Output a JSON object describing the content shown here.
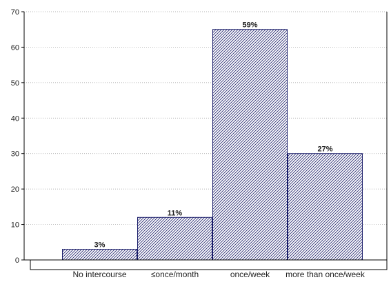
{
  "chart_data": {
    "type": "bar",
    "title": "",
    "xlabel": "",
    "ylabel": "",
    "categories": [
      "No intercourse",
      "≤once/month",
      "once/week",
      "more than once/week"
    ],
    "values": [
      3,
      12,
      65,
      30
    ],
    "data_labels": [
      "3%",
      "11%",
      "59%",
      "27%"
    ],
    "ylim": [
      0,
      70
    ],
    "yticks": [
      0,
      10,
      20,
      30,
      40,
      50,
      60,
      70
    ],
    "grid": "horizontal-dotted",
    "legend": "none",
    "bar_style": "diagonal-hatch",
    "colors": {
      "bar_outline": "#1c1f6b",
      "hatch": "#1c1f6b",
      "grid": "#9a9a9a",
      "axis": "#000000"
    }
  }
}
